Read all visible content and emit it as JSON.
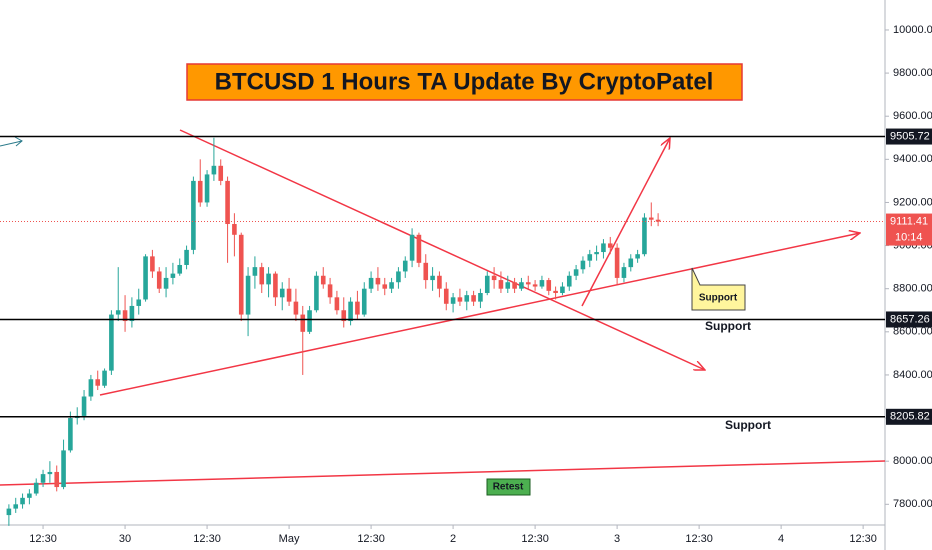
{
  "chart_data": {
    "type": "candlestick",
    "title": "BTCUSD 1 Hours TA Update By CryptoPatel",
    "up_color": "#26a69a",
    "down_color": "#ef5350",
    "x": [
      -5,
      -4,
      -3,
      -2,
      -1,
      0,
      1,
      2,
      3,
      4,
      5,
      6,
      7,
      8,
      9,
      10,
      11,
      12,
      13,
      14,
      15,
      16,
      17,
      18,
      19,
      20,
      21,
      22,
      23,
      24,
      25,
      26,
      27,
      28,
      29,
      30,
      31,
      32,
      33,
      34,
      35,
      36,
      37,
      38,
      39,
      40,
      41,
      42,
      43,
      44,
      45,
      46,
      47,
      48,
      49,
      50,
      51,
      52,
      53,
      54,
      55,
      56,
      57,
      58,
      59,
      60,
      61,
      62,
      63,
      64,
      65,
      66,
      67,
      68,
      69,
      70,
      71,
      72,
      73,
      74,
      75,
      76,
      77,
      78,
      79,
      80,
      81,
      82,
      83,
      84,
      85,
      86,
      87,
      88,
      89,
      90
    ],
    "open": [
      7750,
      7780,
      7800,
      7830,
      7850,
      7900,
      7940,
      7950,
      7880,
      8050,
      8200,
      8210,
      8300,
      8380,
      8350,
      8420,
      8680,
      8700,
      8650,
      8720,
      8750,
      8950,
      8880,
      8800,
      8850,
      8870,
      8910,
      8980,
      9300,
      9200,
      9330,
      9370,
      9300,
      9100,
      9050,
      8680,
      8860,
      8900,
      8820,
      8870,
      8760,
      8800,
      8740,
      8680,
      8600,
      8700,
      8860,
      8820,
      8760,
      8700,
      8650,
      8740,
      8680,
      8800,
      8850,
      8820,
      8800,
      8830,
      8880,
      8930,
      9050,
      8920,
      8840,
      8860,
      8800,
      8730,
      8760,
      8740,
      8770,
      8740,
      8780,
      8860,
      8840,
      8800,
      8830,
      8800,
      8830,
      8820,
      8810,
      8840,
      8790,
      8780,
      8810,
      8860,
      8890,
      8930,
      8960,
      8970,
      9010,
      8990,
      8850,
      8900,
      8940,
      8960,
      9130,
      9120
    ],
    "high": [
      7800,
      7830,
      7850,
      7870,
      7920,
      7960,
      8000,
      7980,
      8100,
      8230,
      8250,
      8330,
      8400,
      8420,
      8430,
      8700,
      8900,
      8770,
      8760,
      8800,
      8960,
      8980,
      8900,
      8900,
      8920,
      8940,
      9000,
      9320,
      9400,
      9350,
      9500,
      9400,
      9320,
      9150,
      9060,
      8900,
      8950,
      8920,
      8900,
      8880,
      8830,
      8850,
      8800,
      8720,
      8720,
      8880,
      8900,
      8850,
      8790,
      8760,
      8760,
      8790,
      8830,
      8880,
      8900,
      8850,
      8850,
      8900,
      8950,
      9080,
      9060,
      8960,
      8900,
      8880,
      8830,
      8780,
      8800,
      8790,
      8790,
      8800,
      8880,
      8900,
      8880,
      8860,
      8850,
      8850,
      8860,
      8840,
      8860,
      8850,
      8810,
      8830,
      8880,
      8910,
      8950,
      8980,
      9000,
      9030,
      9040,
      9010,
      8920,
      8960,
      8980,
      9150,
      9200,
      9150
    ],
    "low": [
      7700,
      7760,
      7780,
      7800,
      7840,
      7880,
      7900,
      7860,
      7870,
      8040,
      8170,
      8190,
      8280,
      8330,
      8340,
      8400,
      8650,
      8600,
      8620,
      8680,
      8740,
      8850,
      8780,
      8760,
      8820,
      8860,
      8890,
      8960,
      9180,
      9180,
      9300,
      9280,
      8920,
      8950,
      8650,
      8580,
      8800,
      8780,
      8760,
      8720,
      8700,
      8720,
      8650,
      8400,
      8590,
      8690,
      8800,
      8730,
      8680,
      8620,
      8630,
      8660,
      8670,
      8780,
      8790,
      8770,
      8780,
      8800,
      8850,
      8900,
      8900,
      8800,
      8790,
      8760,
      8700,
      8690,
      8720,
      8700,
      8720,
      8710,
      8770,
      8800,
      8780,
      8780,
      8780,
      8790,
      8800,
      8790,
      8800,
      8770,
      8750,
      8770,
      8790,
      8840,
      8870,
      8900,
      8930,
      8940,
      8960,
      8820,
      8830,
      8880,
      8920,
      8950,
      9090,
      9090
    ],
    "close": [
      7780,
      7800,
      7830,
      7850,
      7900,
      7940,
      7950,
      7880,
      8050,
      8200,
      8210,
      8300,
      8380,
      8350,
      8420,
      8680,
      8700,
      8650,
      8720,
      8750,
      8950,
      8880,
      8800,
      8850,
      8870,
      8910,
      8980,
      9300,
      9200,
      9330,
      9370,
      9300,
      9100,
      9050,
      8680,
      8860,
      8900,
      8820,
      8870,
      8760,
      8800,
      8740,
      8680,
      8600,
      8700,
      8860,
      8820,
      8760,
      8700,
      8650,
      8740,
      8680,
      8800,
      8850,
      8820,
      8800,
      8830,
      8880,
      8930,
      9050,
      8920,
      8840,
      8860,
      8800,
      8730,
      8760,
      8740,
      8770,
      8740,
      8780,
      8860,
      8840,
      8800,
      8830,
      8800,
      8830,
      8820,
      8810,
      8840,
      8790,
      8780,
      8810,
      8860,
      8890,
      8930,
      8960,
      8970,
      9010,
      8990,
      8850,
      8900,
      8940,
      8960,
      9130,
      9120,
      9111
    ],
    "xlim": [
      -6.3,
      123.2
    ],
    "xticks": [
      {
        "value": 0,
        "label": "12:30"
      },
      {
        "value": 12,
        "label": "30"
      },
      {
        "value": 24,
        "label": "12:30"
      },
      {
        "value": 36,
        "label": "May"
      },
      {
        "value": 48,
        "label": "12:30"
      },
      {
        "value": 60,
        "label": "2"
      },
      {
        "value": 72,
        "label": "12:30"
      },
      {
        "value": 84,
        "label": "3"
      },
      {
        "value": 96,
        "label": "12:30"
      },
      {
        "value": 108,
        "label": "4"
      },
      {
        "value": 120,
        "label": "12:30"
      }
    ],
    "ylim": [
      7704,
      10139
    ],
    "yticks": [
      {
        "value": 7800,
        "label": "7800.00"
      },
      {
        "value": 8000,
        "label": "8000.00"
      },
      {
        "value": 8200,
        "label": "8200.00"
      },
      {
        "value": 8400,
        "label": "8400.00"
      },
      {
        "value": 8600,
        "label": "8600.00"
      },
      {
        "value": 8800,
        "label": "8800.00"
      },
      {
        "value": 9000,
        "label": "9000.00"
      },
      {
        "value": 9200,
        "label": "9200.00"
      },
      {
        "value": 9400,
        "label": "9400.00"
      },
      {
        "value": 9600,
        "label": "9600.00"
      },
      {
        "value": 9800,
        "label": "9800.00"
      },
      {
        "value": 10000,
        "label": "10000.00"
      }
    ],
    "levels": [
      9505.72,
      8657.26,
      8205.82
    ],
    "last_price": 9111.41,
    "countdown": "10:14",
    "annotations": [
      "Support",
      "Support",
      "Support",
      "Retest"
    ]
  }
}
